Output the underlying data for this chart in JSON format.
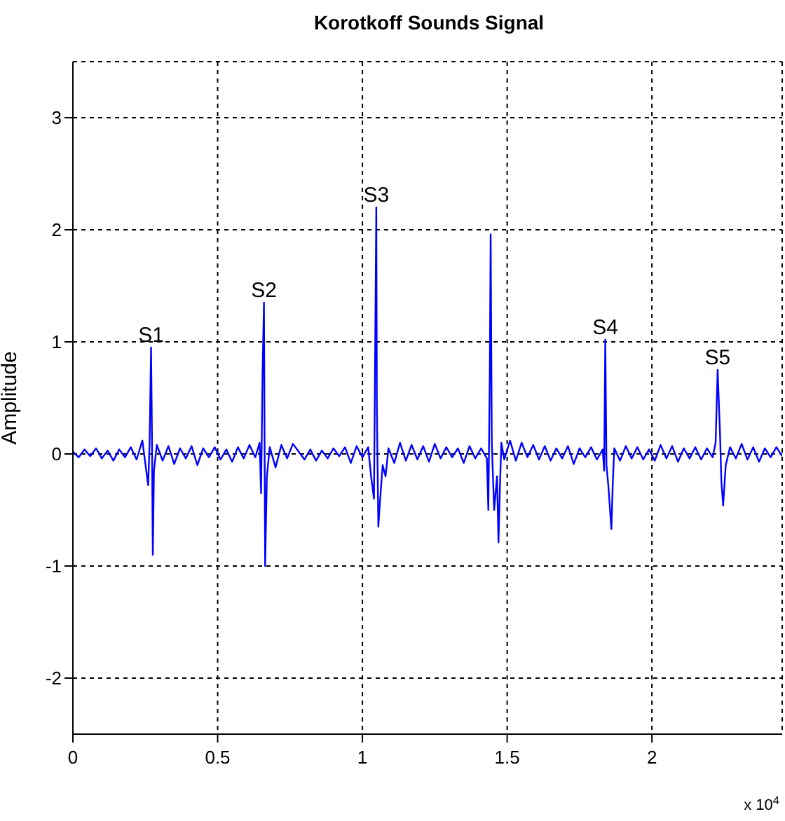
{
  "chart_data": {
    "type": "line",
    "title": "Korotkoff Sounds Signal",
    "ylabel": "Amplitude",
    "x": [
      0,
      0.02,
      0.04,
      0.06,
      0.08,
      0.1,
      0.12,
      0.14,
      0.16,
      0.18,
      0.2,
      0.22,
      0.24,
      0.25,
      0.26,
      0.265,
      0.27,
      0.273,
      0.276,
      0.28,
      0.29,
      0.31,
      0.33,
      0.35,
      0.37,
      0.39,
      0.41,
      0.43,
      0.45,
      0.47,
      0.49,
      0.51,
      0.53,
      0.55,
      0.57,
      0.59,
      0.61,
      0.63,
      0.645,
      0.65,
      0.655,
      0.66,
      0.664,
      0.67,
      0.68,
      0.7,
      0.72,
      0.74,
      0.76,
      0.78,
      0.8,
      0.82,
      0.84,
      0.86,
      0.88,
      0.9,
      0.92,
      0.94,
      0.96,
      0.98,
      1.0,
      1.02,
      1.03,
      1.04,
      1.045,
      1.048,
      1.05,
      1.055,
      1.06,
      1.07,
      1.08,
      1.09,
      1.11,
      1.13,
      1.15,
      1.17,
      1.19,
      1.21,
      1.23,
      1.25,
      1.27,
      1.29,
      1.31,
      1.33,
      1.35,
      1.37,
      1.39,
      1.41,
      1.43,
      1.435,
      1.44,
      1.443,
      1.447,
      1.455,
      1.465,
      1.47,
      1.475,
      1.48,
      1.49,
      1.51,
      1.53,
      1.55,
      1.57,
      1.59,
      1.61,
      1.63,
      1.65,
      1.67,
      1.69,
      1.71,
      1.73,
      1.75,
      1.77,
      1.79,
      1.81,
      1.83,
      1.835,
      1.839,
      1.843,
      1.85,
      1.86,
      1.865,
      1.87,
      1.89,
      1.91,
      1.93,
      1.95,
      1.97,
      1.99,
      2.01,
      2.03,
      2.05,
      2.07,
      2.09,
      2.11,
      2.13,
      2.15,
      2.17,
      2.19,
      2.21,
      2.22,
      2.227,
      2.235,
      2.24,
      2.246,
      2.255,
      2.27,
      2.29,
      2.31,
      2.33,
      2.35,
      2.37,
      2.39,
      2.41,
      2.43,
      2.45
    ],
    "series": [
      {
        "color": "#0000ff",
        "values": [
          0.02,
          -0.03,
          0.04,
          -0.02,
          0.05,
          -0.04,
          0.03,
          -0.06,
          0.04,
          -0.03,
          0.06,
          -0.05,
          0.12,
          -0.08,
          -0.28,
          0.1,
          0.95,
          0.2,
          -0.9,
          -0.15,
          0.08,
          -0.06,
          0.07,
          -0.09,
          0.05,
          -0.04,
          0.07,
          -0.1,
          0.05,
          -0.03,
          0.06,
          -0.05,
          0.04,
          -0.07,
          0.06,
          -0.04,
          0.08,
          -0.03,
          0.1,
          -0.35,
          0.7,
          1.35,
          -1.0,
          -0.2,
          0.06,
          -0.12,
          0.08,
          -0.04,
          0.09,
          0.02,
          -0.05,
          0.04,
          -0.06,
          0.03,
          -0.04,
          0.05,
          -0.02,
          0.06,
          -0.08,
          0.07,
          -0.03,
          0.06,
          -0.2,
          -0.4,
          1.2,
          2.2,
          0.4,
          -0.65,
          -0.45,
          -0.1,
          -0.2,
          0.05,
          -0.08,
          0.1,
          -0.06,
          0.08,
          -0.05,
          0.07,
          -0.07,
          0.09,
          -0.04,
          0.06,
          -0.03,
          0.05,
          -0.08,
          0.07,
          -0.04,
          0.05,
          -0.04,
          -0.5,
          0.7,
          1.96,
          0.1,
          -0.5,
          -0.2,
          -0.79,
          -0.3,
          0.1,
          -0.05,
          0.12,
          -0.06,
          0.1,
          -0.03,
          0.08,
          -0.05,
          0.07,
          -0.06,
          0.05,
          -0.04,
          0.07,
          -0.09,
          0.05,
          -0.03,
          0.06,
          -0.05,
          0.04,
          -0.15,
          1.02,
          -0.1,
          -0.3,
          -0.67,
          -0.25,
          0.05,
          -0.06,
          0.07,
          -0.04,
          0.06,
          -0.05,
          0.04,
          -0.06,
          0.08,
          -0.04,
          0.07,
          -0.07,
          0.05,
          -0.04,
          0.06,
          -0.05,
          0.05,
          -0.03,
          0.1,
          0.75,
          0.2,
          -0.25,
          -0.46,
          -0.1,
          0.06,
          -0.04,
          0.09,
          -0.05,
          0.06,
          -0.07,
          0.05,
          -0.03,
          0.06,
          -0.02
        ]
      }
    ],
    "xlim": [
      0,
      2.45
    ],
    "xticks": [
      0,
      0.5,
      1,
      1.5,
      2
    ],
    "ylim": [
      -2.5,
      3.5
    ],
    "yticks": [
      -2,
      -1,
      0,
      1,
      2,
      3
    ],
    "grid": true,
    "legend": false,
    "marker": "none",
    "line_style": "solid",
    "annotations": [
      {
        "text": "S1",
        "x": 0.27,
        "y": 0.95
      },
      {
        "text": "S2",
        "x": 0.66,
        "y": 1.35
      },
      {
        "text": "S3",
        "x": 1.048,
        "y": 2.2
      },
      {
        "text": "S4",
        "x": 1.839,
        "y": 1.02
      },
      {
        "text": "S5",
        "x": 2.227,
        "y": 0.75
      },
      "x 10$^{4}$"
    ]
  }
}
